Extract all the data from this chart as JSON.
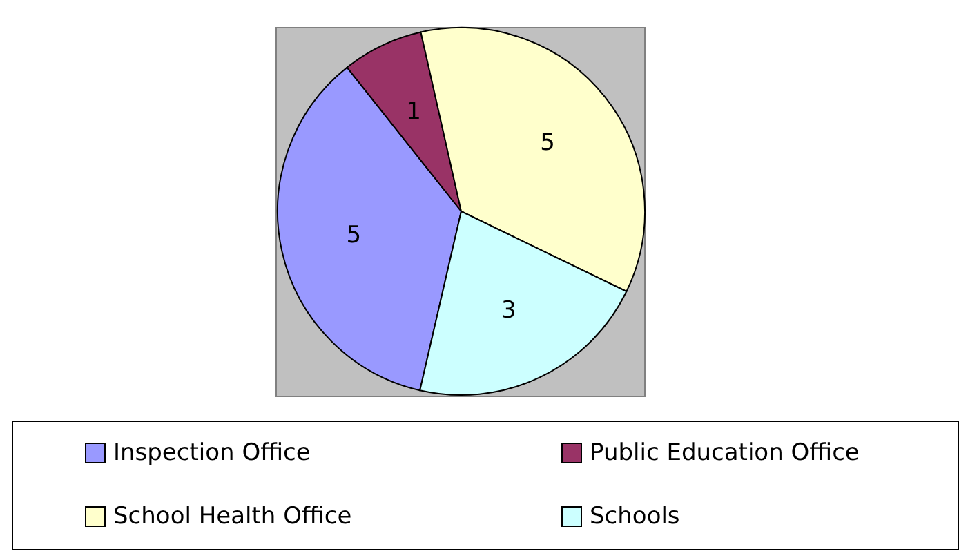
{
  "chart_data": {
    "type": "pie",
    "categories": [
      "Inspection Office",
      "Public Education Office",
      "School Health Office",
      "Schools"
    ],
    "values": [
      5,
      1,
      5,
      3
    ],
    "colors": [
      "#9999ff",
      "#993366",
      "#ffffcc",
      "#ccffff"
    ],
    "data_labels": true,
    "legend": "bottom"
  }
}
